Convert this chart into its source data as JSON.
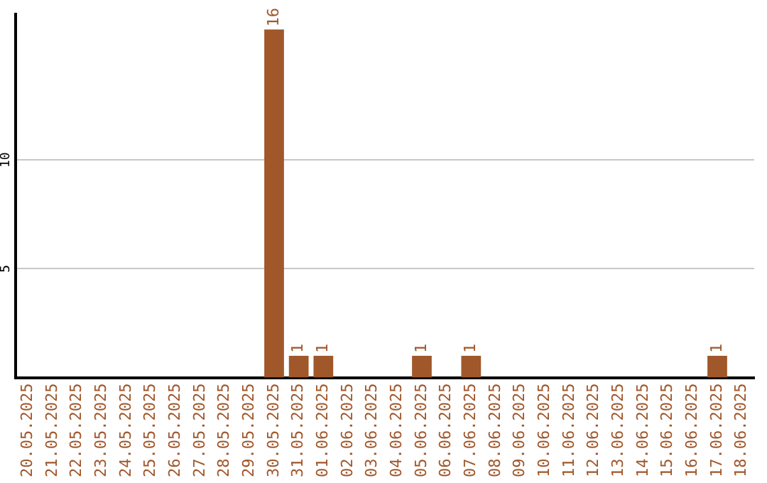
{
  "chart_data": {
    "type": "bar",
    "categories": [
      "20.05.2025",
      "21.05.2025",
      "22.05.2025",
      "23.05.2025",
      "24.05.2025",
      "25.05.2025",
      "26.05.2025",
      "27.05.2025",
      "28.05.2025",
      "29.05.2025",
      "30.05.2025",
      "31.05.2025",
      "01.06.2025",
      "02.06.2025",
      "03.06.2025",
      "04.06.2025",
      "05.06.2025",
      "06.06.2025",
      "07.06.2025",
      "08.06.2025",
      "09.06.2025",
      "10.06.2025",
      "11.06.2025",
      "12.06.2025",
      "13.06.2025",
      "14.06.2025",
      "15.06.2025",
      "16.06.2025",
      "17.06.2025",
      "18.06.2025"
    ],
    "values": [
      0,
      0,
      0,
      0,
      0,
      0,
      0,
      0,
      0,
      0,
      16,
      1,
      1,
      0,
      0,
      0,
      1,
      0,
      1,
      0,
      0,
      0,
      0,
      0,
      0,
      0,
      0,
      0,
      1,
      0
    ],
    "value_labels": [
      null,
      null,
      null,
      null,
      null,
      null,
      null,
      null,
      null,
      null,
      "16",
      "1",
      "1",
      null,
      null,
      null,
      "1",
      null,
      "1",
      null,
      null,
      null,
      null,
      null,
      null,
      null,
      null,
      null,
      "1",
      null
    ],
    "color": "#a0572a",
    "ylim": [
      0,
      16.7
    ],
    "yticks": [
      5,
      10
    ],
    "grid": "y",
    "legend": false
  }
}
